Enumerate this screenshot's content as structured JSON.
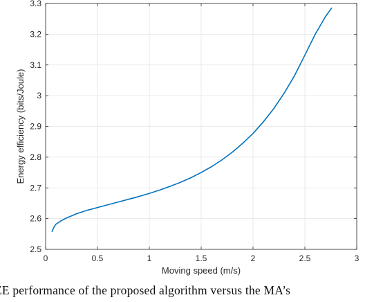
{
  "caption": "EE performance of the proposed algorithm versus the MA’s",
  "chart_data": {
    "type": "line",
    "title": "",
    "xlabel": "Moving speed (m/s)",
    "ylabel": "Energy efficiency (bits/Joule)",
    "xlim": [
      0,
      3
    ],
    "ylim": [
      2.5,
      3.3
    ],
    "xticks": [
      "0",
      "0.5",
      "1",
      "1.5",
      "2",
      "2.5",
      "3"
    ],
    "yticks": [
      "2.5",
      "2.6",
      "2.7",
      "2.8",
      "2.9",
      "3",
      "3.1",
      "3.2",
      "3.3"
    ],
    "grid": true,
    "color": "#0072BD",
    "series": [
      {
        "x": [
          0.06,
          0.08,
          0.1,
          0.15,
          0.2,
          0.3,
          0.4,
          0.5,
          0.6,
          0.7,
          0.8,
          0.9,
          1.0,
          1.1,
          1.2,
          1.3,
          1.4,
          1.5,
          1.6,
          1.7,
          1.8,
          1.9,
          2.0,
          2.1,
          2.2,
          2.3,
          2.4,
          2.5,
          2.6,
          2.7,
          2.76
        ],
        "y": [
          2.557,
          2.572,
          2.582,
          2.593,
          2.602,
          2.616,
          2.627,
          2.636,
          2.645,
          2.654,
          2.663,
          2.672,
          2.682,
          2.693,
          2.705,
          2.718,
          2.733,
          2.75,
          2.769,
          2.791,
          2.816,
          2.845,
          2.877,
          2.915,
          2.958,
          3.008,
          3.065,
          3.132,
          3.2,
          3.258,
          3.286
        ]
      }
    ]
  }
}
